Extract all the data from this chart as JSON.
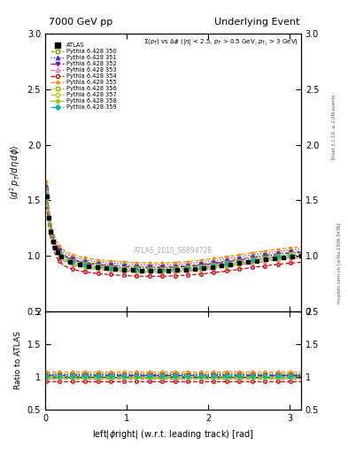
{
  "title_left": "7000 GeV pp",
  "title_right": "Underlying Event",
  "subtitle": "#Sigma(p_{T}) vs #Delta#phi (|#eta| < 2.5, p_{T} > 0.5 GeV, p_{T_{1}} > 3 GeV)",
  "ylabel_main": "<d^{2} p_{T}/d#etad#phi>",
  "ylabel_ratio": "Ratio to ATLAS",
  "xlabel": "left|#phiright| (w.r.t. leading track) [rad]",
  "watermark": "ATLAS_2010_S8894728",
  "right_label": "mcplots.cern.ch [arXiv:1306.3436]",
  "rivet_label": "Rivet 3.1.10, >= 2.5M events",
  "ylim_main": [
    0.5,
    3.0
  ],
  "ylim_ratio": [
    0.5,
    2.0
  ],
  "xlim": [
    0,
    3.14159
  ],
  "series_labels": [
    "ATLAS",
    "Pythia 6.428 350",
    "Pythia 6.428 351",
    "Pythia 6.428 352",
    "Pythia 6.428 353",
    "Pythia 6.428 354",
    "Pythia 6.428 355",
    "Pythia 6.428 356",
    "Pythia 6.428 357",
    "Pythia 6.428 358",
    "Pythia 6.428 359"
  ],
  "colors": [
    "#000000",
    "#999900",
    "#3333ff",
    "#8800cc",
    "#ff66bb",
    "#dd0000",
    "#ff8800",
    "#aaaa00",
    "#ccbb00",
    "#99cc00",
    "#00bbaa"
  ],
  "markers": [
    "s",
    "s",
    "^",
    "v",
    "^",
    "o",
    "*",
    "s",
    "D",
    "p",
    "D"
  ],
  "linestyles": [
    "none",
    "--",
    ":",
    "-.",
    "--",
    "--",
    "--",
    ":",
    "-.",
    "-",
    "--"
  ],
  "filled": [
    true,
    false,
    true,
    true,
    false,
    false,
    true,
    false,
    false,
    true,
    true
  ],
  "scales": [
    1.0,
    1.04,
    1.06,
    1.03,
    0.98,
    0.94,
    1.08,
    1.02,
    1.0,
    0.99,
    1.01
  ],
  "markersize_data": 3.5,
  "markersize_mc": 2.5,
  "linewidth": 0.9
}
